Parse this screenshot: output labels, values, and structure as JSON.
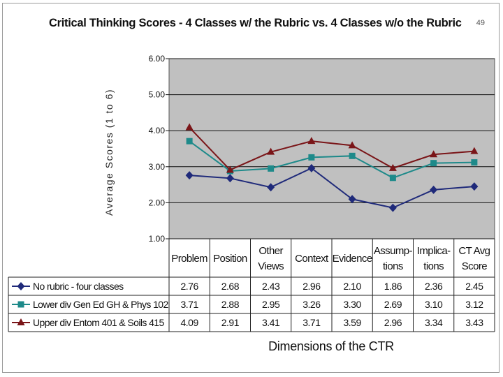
{
  "page_number": "49",
  "chart_data": {
    "type": "line",
    "title": "Critical Thinking Scores - 4 Classes w/ the Rubric vs. 4 Classes w/o the Rubric",
    "ylabel": "Average Scores (1 to 6)",
    "xlabel": "Dimensions of the CTR",
    "ylim": [
      1.0,
      6.0
    ],
    "y_ticks": [
      "1.00",
      "2.00",
      "3.00",
      "4.00",
      "5.00",
      "6.00"
    ],
    "grid": true,
    "categories": [
      [
        "Problem"
      ],
      [
        "Position"
      ],
      [
        "Other",
        "Views"
      ],
      [
        "Context"
      ],
      [
        "Evidence"
      ],
      [
        "Assump-",
        "tions"
      ],
      [
        "Implica-",
        "tions"
      ],
      [
        "CT Avg",
        "Score"
      ]
    ],
    "series": [
      {
        "name": "No rubric - four classes",
        "color": "#1f2a7a",
        "marker": "diamond",
        "values": [
          2.76,
          2.68,
          2.43,
          2.96,
          2.1,
          1.86,
          2.36,
          2.45
        ],
        "labels": [
          "2.76",
          "2.68",
          "2.43",
          "2.96",
          "2.10",
          "1.86",
          "2.36",
          "2.45"
        ]
      },
      {
        "name": "Lower div Gen Ed GH & Phys 102",
        "color": "#1e8a8a",
        "marker": "square",
        "values": [
          3.71,
          2.88,
          2.95,
          3.26,
          3.3,
          2.69,
          3.1,
          3.12
        ],
        "labels": [
          "3.71",
          "2.88",
          "2.95",
          "3.26",
          "3.30",
          "2.69",
          "3.10",
          "3.12"
        ]
      },
      {
        "name": "Upper div Entom 401 & Soils 415",
        "color": "#7a1518",
        "marker": "triangle",
        "values": [
          4.09,
          2.91,
          3.41,
          3.71,
          3.59,
          2.96,
          3.34,
          3.43
        ],
        "labels": [
          "4.09",
          "2.91",
          "3.41",
          "3.71",
          "3.59",
          "2.96",
          "3.34",
          "3.43"
        ]
      }
    ]
  }
}
